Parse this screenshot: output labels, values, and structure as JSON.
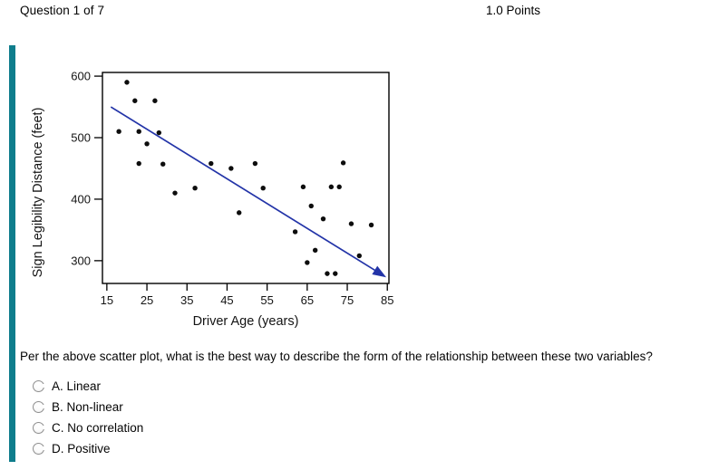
{
  "header": {
    "question_label": "Question 1 of 7",
    "points_label": "1.0 Points"
  },
  "accent_color": "#0e7d8c",
  "chart_data": {
    "type": "scatter",
    "title": "",
    "xlabel": "Driver Age (years)",
    "ylabel": "Sign Legibility Distance (feet)",
    "x_ticks": [
      15,
      25,
      35,
      45,
      55,
      65,
      75,
      85
    ],
    "y_ticks": [
      600,
      500,
      400,
      300
    ],
    "xlim": [
      13.9,
      85.4
    ],
    "ylim": [
      263,
      606
    ],
    "grid": false,
    "points": [
      [
        18,
        510
      ],
      [
        20,
        590
      ],
      [
        22,
        560
      ],
      [
        23,
        510
      ],
      [
        23,
        458
      ],
      [
        25,
        490
      ],
      [
        27,
        560
      ],
      [
        28,
        508
      ],
      [
        29,
        457
      ],
      [
        32,
        410
      ],
      [
        37,
        418
      ],
      [
        41,
        458
      ],
      [
        46,
        450
      ],
      [
        48,
        378
      ],
      [
        52,
        458
      ],
      [
        54,
        418
      ],
      [
        62,
        347
      ],
      [
        64,
        420
      ],
      [
        65,
        297
      ],
      [
        66,
        389
      ],
      [
        67,
        317
      ],
      [
        69,
        368
      ],
      [
        70,
        279
      ],
      [
        71,
        420
      ],
      [
        72,
        279
      ],
      [
        73,
        420
      ],
      [
        74,
        459
      ],
      [
        76,
        360
      ],
      [
        78,
        308
      ],
      [
        81,
        358
      ]
    ],
    "trend_line": {
      "from": [
        16,
        550
      ],
      "to": [
        83,
        280
      ],
      "arrow": true
    },
    "colors": {
      "point": "#0d0d0d",
      "line": "#2334a8",
      "axis": "#000000",
      "text": "#141414"
    }
  },
  "question": {
    "text": "Per the above scatter plot, what is the best way to describe the form of the relationship between these two variables?"
  },
  "options": [
    {
      "key": "A",
      "label": "A. Linear",
      "selected": false
    },
    {
      "key": "B",
      "label": "B. Non-linear",
      "selected": false
    },
    {
      "key": "C",
      "label": "C. No correlation",
      "selected": false
    },
    {
      "key": "D",
      "label": "D. Positive",
      "selected": false
    }
  ]
}
